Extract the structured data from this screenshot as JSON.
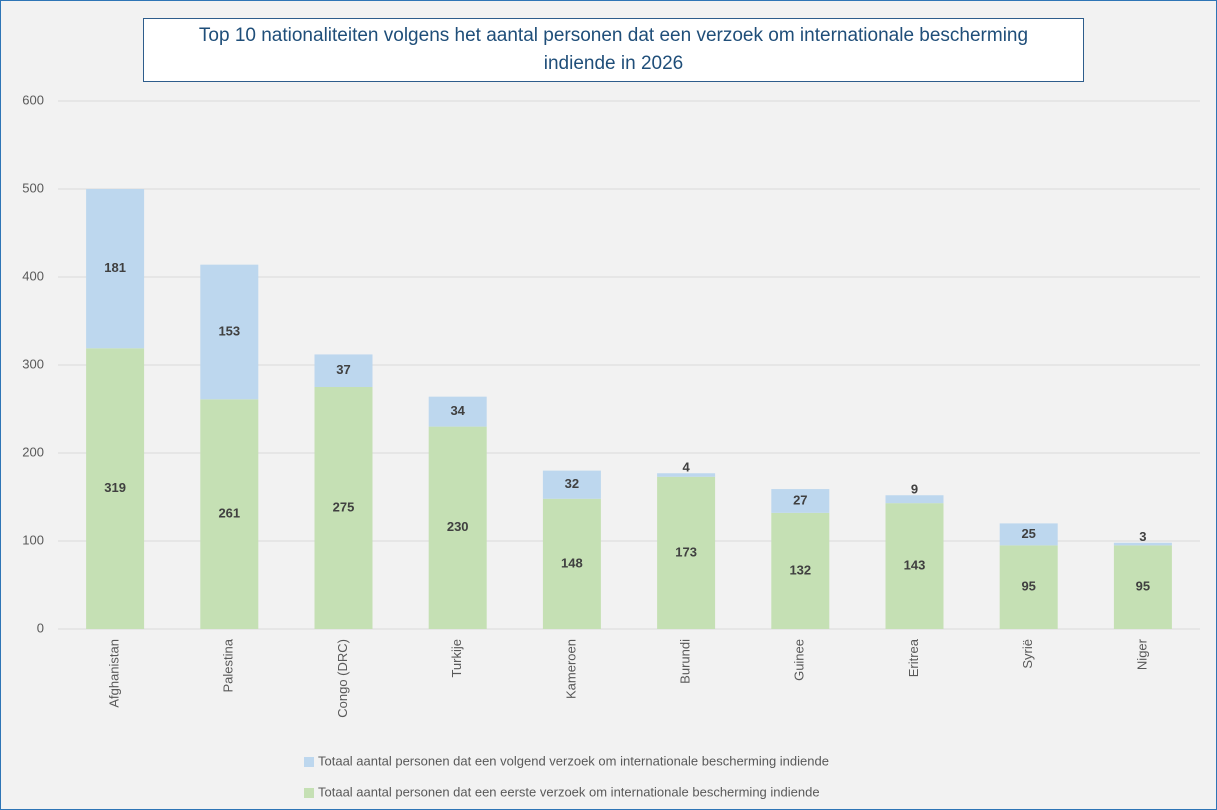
{
  "chart_data": {
    "type": "bar",
    "stacked": true,
    "title": "Top 10 nationaliteiten volgens het aantal personen dat een verzoek om internationale bescherming indiende in 2026",
    "categories": [
      "Afghanistan",
      "Palestina",
      "Congo (DRC)",
      "Turkije",
      "Kameroen",
      "Burundi",
      "Guinee",
      "Eritrea",
      "Syrië",
      "Niger"
    ],
    "series": [
      {
        "name": "Totaal aantal personen dat een eerste verzoek om internationale bescherming indiende",
        "color": "#c5e0b4",
        "values": [
          319,
          261,
          275,
          230,
          148,
          173,
          132,
          143,
          95,
          95
        ]
      },
      {
        "name": "Totaal aantal personen dat een volgend verzoek om internationale bescherming indiende",
        "color": "#bdd7ee",
        "values": [
          181,
          153,
          37,
          34,
          32,
          4,
          27,
          9,
          25,
          3
        ]
      }
    ],
    "ylim": [
      0,
      600
    ],
    "yticks": [
      0,
      100,
      200,
      300,
      400,
      500,
      600
    ],
    "grid": true
  }
}
